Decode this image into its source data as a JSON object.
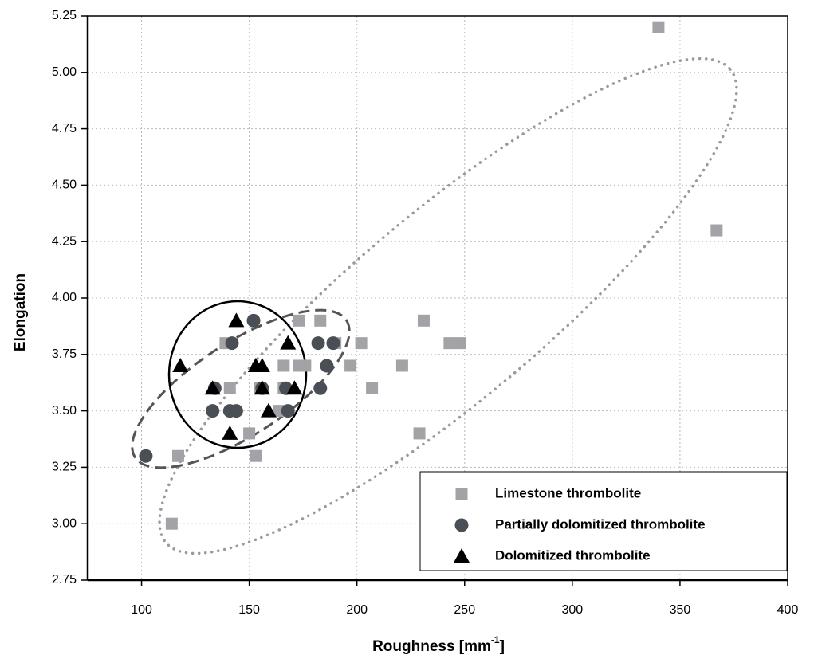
{
  "chart_data": {
    "type": "scatter",
    "x_label": {
      "text": "Roughness [mm",
      "superscript": "-1",
      "suffix": "]"
    },
    "y_label": "Elongation",
    "xlim": [
      75,
      400
    ],
    "ylim": [
      2.75,
      5.25
    ],
    "xticks": [
      100,
      150,
      200,
      250,
      300,
      350,
      400
    ],
    "yticks": [
      2.75,
      {
        "value": 3,
        "label": "3.00"
      },
      3.25,
      {
        "value": 3.5,
        "label": "3.50"
      },
      3.75,
      {
        "value": 4,
        "label": "4.00"
      },
      4.25,
      {
        "value": 4.5,
        "label": "4.50"
      },
      4.75,
      {
        "value": 5,
        "label": "5.00"
      },
      5.25
    ],
    "grid": true,
    "legend": "lower right",
    "series": [
      {
        "name": "Limestone thrombolite",
        "color": "#a3a3a7",
        "marker": "square",
        "x": [
          340,
          367,
          114,
          117,
          150,
          153,
          229,
          207,
          221,
          231,
          243,
          248,
          202,
          197,
          190,
          173,
          183,
          166,
          173,
          176,
          166,
          164,
          139,
          141,
          155
        ],
        "y": [
          5.2,
          4.3,
          3.0,
          3.3,
          3.4,
          3.3,
          3.4,
          3.6,
          3.7,
          3.9,
          3.8,
          3.8,
          3.8,
          3.7,
          3.8,
          3.9,
          3.9,
          3.7,
          3.7,
          3.7,
          3.6,
          3.5,
          3.8,
          3.6,
          3.6
        ]
      },
      {
        "name": "Partially dolomitized thrombolite",
        "color": "#4a4f55",
        "marker": "circle",
        "x": [
          102,
          133,
          141,
          144,
          168,
          142,
          152,
          182,
          189,
          186,
          183,
          167,
          156,
          134
        ],
        "y": [
          3.3,
          3.5,
          3.5,
          3.5,
          3.5,
          3.8,
          3.9,
          3.8,
          3.8,
          3.7,
          3.6,
          3.6,
          3.6,
          3.6
        ]
      },
      {
        "name": "Dolomitized thrombolite",
        "color": "#000000",
        "marker": "triangle",
        "x": [
          118,
          133,
          144,
          141,
          153,
          156,
          156,
          159,
          168,
          171
        ],
        "y": [
          3.7,
          3.6,
          3.9,
          3.4,
          3.7,
          3.7,
          3.6,
          3.5,
          3.8,
          3.6
        ]
      }
    ]
  }
}
